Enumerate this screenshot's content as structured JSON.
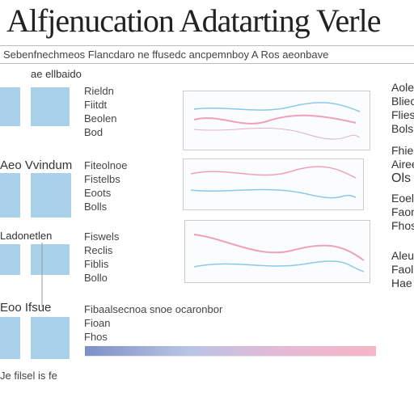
{
  "header": {
    "title": "Alfjenucation Adatarting Verle",
    "subtitle": "Sebenfnechmeos Flancdaro ne ffusedc ancpemnboy A Ros aeonbave"
  },
  "rows": [
    {
      "label": "ae ellbaido",
      "notes": [
        "Rieldn",
        "Fiitdt",
        "Beolen",
        "Bod"
      ]
    },
    {
      "label": "Aeo Vvindum",
      "notes": [
        "Fiteolnoe",
        "Fistelbs",
        "Eoots",
        "Bolls"
      ]
    },
    {
      "label": "Ladonetlen",
      "notes": [
        "Fiswels",
        "Reclis",
        "Fiblis",
        "Bollo"
      ]
    },
    {
      "label": "Eoo Ifsue",
      "notes": [
        "Fibaalsecnoa snoe ocaronbor",
        "Fioan",
        "Fhos"
      ]
    }
  ],
  "right": [
    "Aoleh",
    "Blieco",
    "Flies",
    "Bolsn",
    "Fhielis",
    "Aireesi",
    "Ols",
    "Eoelo",
    "Faone",
    "Fhosi",
    "Aleu",
    "Faolu",
    "Hae"
  ],
  "footer": "Je filsel is fe"
}
